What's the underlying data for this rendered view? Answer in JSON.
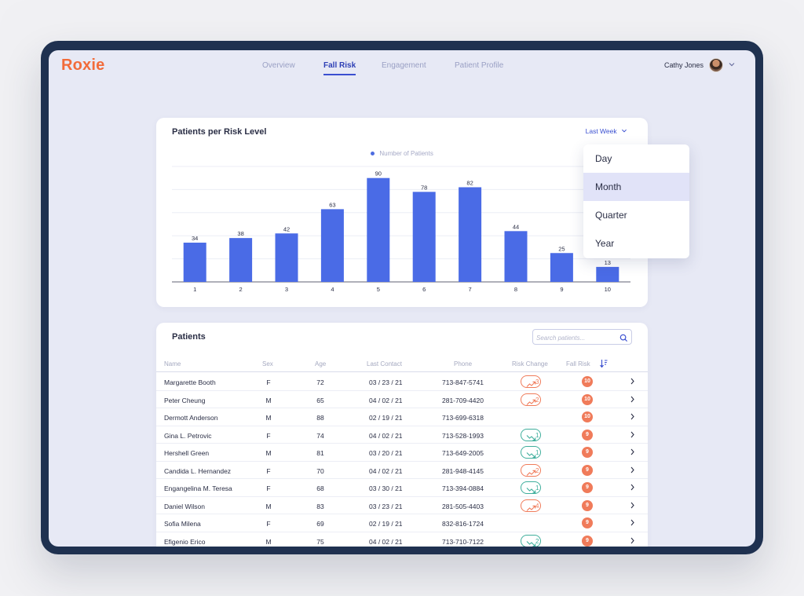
{
  "app": {
    "name": "Roxie"
  },
  "nav": {
    "tabs": [
      {
        "label": "Overview",
        "active": false
      },
      {
        "label": "Fall Risk",
        "active": true
      },
      {
        "label": "Engagement",
        "active": false
      },
      {
        "label": "Patient Profile",
        "active": false
      }
    ]
  },
  "user": {
    "name": "Cathy Jones"
  },
  "risk_chart": {
    "title": "Patients per Risk Level",
    "period_selected": "Last Week",
    "legend_label": "Number of Patients",
    "period_options": [
      "Day",
      "Month",
      "Quarter",
      "Year"
    ],
    "highlighted_option": "Month"
  },
  "chart_data": {
    "type": "bar",
    "title": "Patients per Risk Level",
    "categories": [
      "1",
      "2",
      "3",
      "4",
      "5",
      "6",
      "7",
      "8",
      "9",
      "10"
    ],
    "series": [
      {
        "name": "Number of Patients",
        "values": [
          34,
          38,
          42,
          63,
          90,
          78,
          82,
          44,
          25,
          13
        ]
      }
    ],
    "ylim": [
      0,
      100
    ],
    "grid": true,
    "legend_position": "top-center",
    "bar_color": "#4a6be6"
  },
  "patients": {
    "title": "Patients",
    "search_placeholder": "Search patients...",
    "columns": [
      "Name",
      "Sex",
      "Age",
      "Last Contact",
      "Phone",
      "Risk Change",
      "Fall Risk"
    ],
    "rows": [
      {
        "name": "Margarette Booth",
        "sex": "F",
        "age": "72",
        "last_contact": "03 / 23 / 21",
        "phone": "713-847-5741",
        "risk_change": "3",
        "trend": "up",
        "fall_risk": "10"
      },
      {
        "name": "Peter Cheung",
        "sex": "M",
        "age": "65",
        "last_contact": "04 / 02 / 21",
        "phone": "281-709-4420",
        "risk_change": "2",
        "trend": "up",
        "fall_risk": "10"
      },
      {
        "name": "Dermott Anderson",
        "sex": "M",
        "age": "88",
        "last_contact": "02 / 19 / 21",
        "phone": "713-699-6318",
        "risk_change": "",
        "trend": "none",
        "fall_risk": "10"
      },
      {
        "name": "Gina L. Petrovic",
        "sex": "F",
        "age": "74",
        "last_contact": "04 / 02 / 21",
        "phone": "713-528-1993",
        "risk_change": "1",
        "trend": "down",
        "fall_risk": "9"
      },
      {
        "name": "Hershell Green",
        "sex": "M",
        "age": "81",
        "last_contact": "03 / 20 / 21",
        "phone": "713-649-2005",
        "risk_change": "1",
        "trend": "down",
        "fall_risk": "9"
      },
      {
        "name": "Candida L. Hernandez",
        "sex": "F",
        "age": "70",
        "last_contact": "04 / 02 / 21",
        "phone": "281-948-4145",
        "risk_change": "2",
        "trend": "up",
        "fall_risk": "9"
      },
      {
        "name": "Engangelina M. Teresa",
        "sex": "F",
        "age": "68",
        "last_contact": "03 / 30 / 21",
        "phone": "713-394-0884",
        "risk_change": "1",
        "trend": "down",
        "fall_risk": "9"
      },
      {
        "name": "Daniel Wilson",
        "sex": "M",
        "age": "83",
        "last_contact": "03 / 23 / 21",
        "phone": "281-505-4403",
        "risk_change": "4",
        "trend": "up",
        "fall_risk": "9"
      },
      {
        "name": "Sofia Milena",
        "sex": "F",
        "age": "69",
        "last_contact": "02 / 19 / 21",
        "phone": "832-816-1724",
        "risk_change": "",
        "trend": "none",
        "fall_risk": "9"
      },
      {
        "name": "Efigenio Erico",
        "sex": "M",
        "age": "75",
        "last_contact": "04 / 02 / 21",
        "phone": "713-710-7122",
        "risk_change": "2",
        "trend": "down",
        "fall_risk": "9"
      }
    ]
  },
  "colors": {
    "accent": "#3a4fd0",
    "bar": "#4a6be6",
    "risk_up": "#f07b5a",
    "risk_down": "#3fae9c",
    "logo": "#f26b3a"
  }
}
